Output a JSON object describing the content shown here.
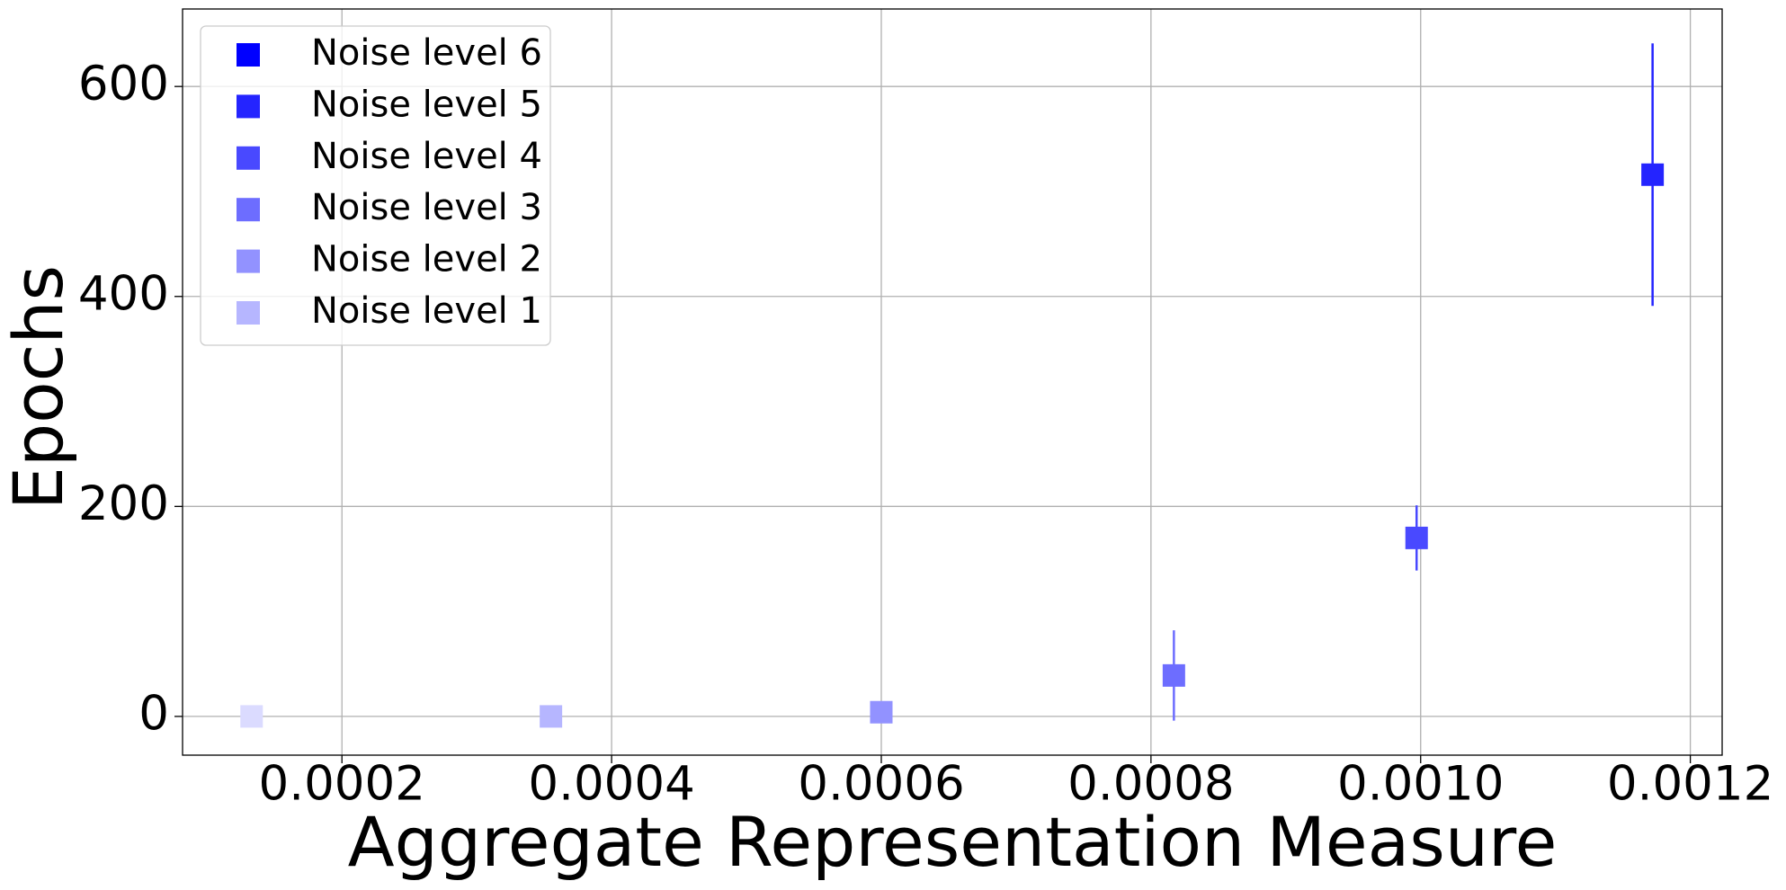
{
  "chart_data": {
    "type": "scatter",
    "x_label": "Aggregate Representation Measure",
    "y_label": "Epochs",
    "xlim": [
      8.18e-05,
      0.0012236
    ],
    "ylim": [
      -36.9,
      673.8
    ],
    "xticks": [
      {
        "value": 0.0002,
        "label": "0.0002"
      },
      {
        "value": 0.0004,
        "label": "0.0004"
      },
      {
        "value": 0.0006,
        "label": "0.0006"
      },
      {
        "value": 0.0008,
        "label": "0.0008"
      },
      {
        "value": 0.001,
        "label": "0.0010"
      },
      {
        "value": 0.0012,
        "label": "0.0012"
      }
    ],
    "yticks": [
      0,
      200,
      400,
      600
    ],
    "grid": true,
    "legend_position": "upper left",
    "legend": [
      {
        "name": "Noise level 6",
        "color": "#0000ff"
      },
      {
        "name": "Noise level 5",
        "color": "#2424ff"
      },
      {
        "name": "Noise level 4",
        "color": "#4949ff"
      },
      {
        "name": "Noise level 3",
        "color": "#6d6dff"
      },
      {
        "name": "Noise level 2",
        "color": "#9292ff"
      },
      {
        "name": "Noise level 1",
        "color": "#b6b6ff"
      }
    ],
    "points": {
      "x": [
        0.000133,
        0.000355,
        0.0006,
        0.000817,
        0.000997,
        0.001172
      ],
      "values": [
        0,
        0,
        4,
        39,
        170,
        516
      ],
      "errors": [
        0,
        0,
        2,
        43,
        31,
        125
      ],
      "colors": [
        "#dbdbff",
        "#b6b6ff",
        "#9292ff",
        "#6d6dff",
        "#4949ff",
        "#2424ff"
      ]
    }
  }
}
